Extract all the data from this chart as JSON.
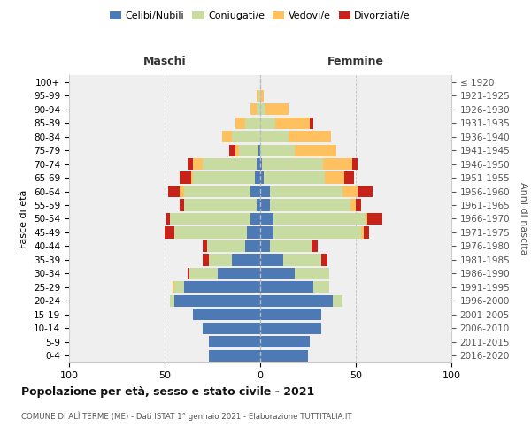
{
  "age_groups": [
    "0-4",
    "5-9",
    "10-14",
    "15-19",
    "20-24",
    "25-29",
    "30-34",
    "35-39",
    "40-44",
    "45-49",
    "50-54",
    "55-59",
    "60-64",
    "65-69",
    "70-74",
    "75-79",
    "80-84",
    "85-89",
    "90-94",
    "95-99",
    "100+"
  ],
  "birth_years": [
    "2016-2020",
    "2011-2015",
    "2006-2010",
    "2001-2005",
    "1996-2000",
    "1991-1995",
    "1986-1990",
    "1981-1985",
    "1976-1980",
    "1971-1975",
    "1966-1970",
    "1961-1965",
    "1956-1960",
    "1951-1955",
    "1946-1950",
    "1941-1945",
    "1936-1940",
    "1931-1935",
    "1926-1930",
    "1921-1925",
    "≤ 1920"
  ],
  "males": {
    "celibi": [
      27,
      27,
      30,
      35,
      45,
      40,
      22,
      15,
      8,
      7,
      5,
      2,
      5,
      3,
      2,
      1,
      0,
      0,
      0,
      0,
      0
    ],
    "coniugati": [
      0,
      0,
      0,
      0,
      2,
      5,
      15,
      12,
      20,
      38,
      42,
      38,
      35,
      32,
      28,
      10,
      15,
      8,
      2,
      1,
      0
    ],
    "vedovi": [
      0,
      0,
      0,
      0,
      0,
      1,
      0,
      0,
      0,
      0,
      0,
      0,
      2,
      1,
      5,
      2,
      5,
      5,
      3,
      1,
      0
    ],
    "divorziati": [
      0,
      0,
      0,
      0,
      0,
      0,
      1,
      3,
      2,
      5,
      2,
      2,
      6,
      6,
      3,
      3,
      0,
      0,
      0,
      0,
      0
    ]
  },
  "females": {
    "nubili": [
      25,
      26,
      32,
      32,
      38,
      28,
      18,
      12,
      5,
      7,
      7,
      5,
      5,
      2,
      1,
      0,
      0,
      0,
      0,
      0,
      0
    ],
    "coniugate": [
      0,
      0,
      0,
      0,
      5,
      8,
      18,
      20,
      22,
      46,
      48,
      42,
      38,
      32,
      32,
      18,
      15,
      8,
      3,
      0,
      0
    ],
    "vedove": [
      0,
      0,
      0,
      0,
      0,
      0,
      0,
      0,
      0,
      1,
      1,
      3,
      8,
      10,
      15,
      22,
      22,
      18,
      12,
      2,
      0
    ],
    "divorziate": [
      0,
      0,
      0,
      0,
      0,
      0,
      0,
      3,
      3,
      3,
      8,
      3,
      8,
      5,
      3,
      0,
      0,
      2,
      0,
      0,
      0
    ]
  },
  "colors": {
    "celibi_nubili": "#4d7ab5",
    "coniugati": "#c8dba0",
    "vedovi": "#ffc060",
    "divorziati": "#c8231a"
  },
  "xlim": [
    -100,
    100
  ],
  "xticks": [
    -100,
    -50,
    0,
    50,
    100
  ],
  "xticklabels": [
    "100",
    "50",
    "0",
    "50",
    "100"
  ],
  "title": "Popolazione per età, sesso e stato civile - 2021",
  "subtitle": "COMUNE DI ALÌ TERME (ME) - Dati ISTAT 1° gennaio 2021 - Elaborazione TUTTITALIA.IT",
  "ylabel_left": "Fasce di età",
  "ylabel_right": "Anni di nascita",
  "header_maschi": "Maschi",
  "header_femmine": "Femmine",
  "legend_labels": [
    "Celibi/Nubili",
    "Coniugati/e",
    "Vedovi/e",
    "Divorziati/e"
  ],
  "bg_color": "#efefef",
  "bar_height": 0.85
}
